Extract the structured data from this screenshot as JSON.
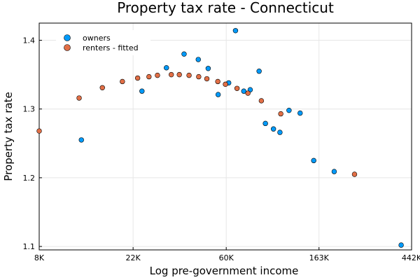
{
  "chart_data": {
    "type": "scatter",
    "title": "Property tax rate - Connecticut",
    "xlabel": "Log pre-government income",
    "ylabel": "Property tax rate",
    "x_scale": "log",
    "xlim": [
      8000,
      442000
    ],
    "ylim": [
      1.095,
      1.425
    ],
    "x_ticks": [
      {
        "value": 8000,
        "label": "8K"
      },
      {
        "value": 22000,
        "label": "22K"
      },
      {
        "value": 60000,
        "label": "60K"
      },
      {
        "value": 163000,
        "label": "163K"
      },
      {
        "value": 442000,
        "label": "442K"
      }
    ],
    "y_ticks": [
      {
        "value": 1.1,
        "label": "1.1"
      },
      {
        "value": 1.2,
        "label": "1.2"
      },
      {
        "value": 1.3,
        "label": "1.3"
      },
      {
        "value": 1.4,
        "label": "1.4"
      }
    ],
    "grid": true,
    "legend_position": "top-left",
    "series": [
      {
        "name": "owners",
        "color": "#009af9",
        "points": [
          {
            "x": 12600,
            "y": 1.255
          },
          {
            "x": 24200,
            "y": 1.326
          },
          {
            "x": 31500,
            "y": 1.36
          },
          {
            "x": 38100,
            "y": 1.38
          },
          {
            "x": 44400,
            "y": 1.372
          },
          {
            "x": 49400,
            "y": 1.359
          },
          {
            "x": 55000,
            "y": 1.321
          },
          {
            "x": 61600,
            "y": 1.338
          },
          {
            "x": 66300,
            "y": 1.414
          },
          {
            "x": 72500,
            "y": 1.326
          },
          {
            "x": 77700,
            "y": 1.328
          },
          {
            "x": 85500,
            "y": 1.355
          },
          {
            "x": 91500,
            "y": 1.279
          },
          {
            "x": 99800,
            "y": 1.271
          },
          {
            "x": 107000,
            "y": 1.266
          },
          {
            "x": 118000,
            "y": 1.298
          },
          {
            "x": 133000,
            "y": 1.294
          },
          {
            "x": 154000,
            "y": 1.225
          },
          {
            "x": 192000,
            "y": 1.209
          },
          {
            "x": 395000,
            "y": 1.102
          }
        ]
      },
      {
        "name": "renters - fitted",
        "color": "#e26f46",
        "points": [
          {
            "x": 8000,
            "y": 1.268
          },
          {
            "x": 12300,
            "y": 1.316
          },
          {
            "x": 15800,
            "y": 1.331
          },
          {
            "x": 19600,
            "y": 1.34
          },
          {
            "x": 23100,
            "y": 1.345
          },
          {
            "x": 26100,
            "y": 1.347
          },
          {
            "x": 28600,
            "y": 1.349
          },
          {
            "x": 33200,
            "y": 1.35
          },
          {
            "x": 36200,
            "y": 1.35
          },
          {
            "x": 40200,
            "y": 1.349
          },
          {
            "x": 44600,
            "y": 1.347
          },
          {
            "x": 48700,
            "y": 1.344
          },
          {
            "x": 54800,
            "y": 1.34
          },
          {
            "x": 59500,
            "y": 1.336
          },
          {
            "x": 67400,
            "y": 1.33
          },
          {
            "x": 75800,
            "y": 1.323
          },
          {
            "x": 87600,
            "y": 1.312
          },
          {
            "x": 108000,
            "y": 1.293
          },
          {
            "x": 239000,
            "y": 1.205
          }
        ]
      }
    ]
  }
}
